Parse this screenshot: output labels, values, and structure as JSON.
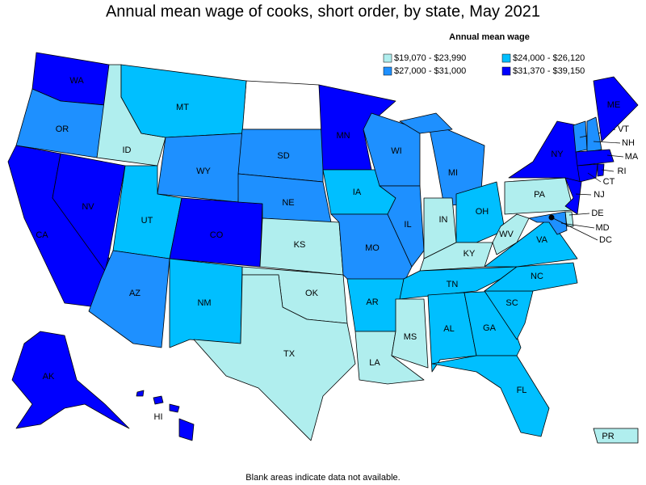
{
  "title": "Annual mean wage of cooks, short order, by state, May 2021",
  "legend": {
    "title": "Annual mean wage",
    "items": [
      {
        "label": "$19,070 - $23,990",
        "color": "#b0eeee"
      },
      {
        "label": "$27,000 - $31,000",
        "color": "#1e90ff"
      },
      {
        "label": "$24,000 - $26,120",
        "color": "#00bfff"
      },
      {
        "label": "$31,370 - $39,150",
        "color": "#0000ff"
      }
    ]
  },
  "states": [
    {
      "abbr": "WA",
      "color": "#0000ff"
    },
    {
      "abbr": "OR",
      "color": "#1e90ff"
    },
    {
      "abbr": "CA",
      "color": "#0000ff"
    },
    {
      "abbr": "NV",
      "color": "#0000ff"
    },
    {
      "abbr": "ID",
      "color": "#b0eeee"
    },
    {
      "abbr": "MT",
      "color": "#00bfff"
    },
    {
      "abbr": "WY",
      "color": "#1e90ff"
    },
    {
      "abbr": "UT",
      "color": "#00bfff"
    },
    {
      "abbr": "CO",
      "color": "#0000ff"
    },
    {
      "abbr": "AZ",
      "color": "#1e90ff"
    },
    {
      "abbr": "NM",
      "color": "#00bfff"
    },
    {
      "abbr": "SD",
      "color": "#1e90ff"
    },
    {
      "abbr": "NE",
      "color": "#1e90ff"
    },
    {
      "abbr": "KS",
      "color": "#b0eeee"
    },
    {
      "abbr": "OK",
      "color": "#b0eeee"
    },
    {
      "abbr": "TX",
      "color": "#b0eeee"
    },
    {
      "abbr": "MN",
      "color": "#0000ff"
    },
    {
      "abbr": "IA",
      "color": "#00bfff"
    },
    {
      "abbr": "MO",
      "color": "#1e90ff"
    },
    {
      "abbr": "AR",
      "color": "#00bfff"
    },
    {
      "abbr": "LA",
      "color": "#b0eeee"
    },
    {
      "abbr": "WI",
      "color": "#1e90ff"
    },
    {
      "abbr": "IL",
      "color": "#1e90ff"
    },
    {
      "abbr": "MI",
      "color": "#1e90ff"
    },
    {
      "abbr": "IN",
      "color": "#b0eeee"
    },
    {
      "abbr": "OH",
      "color": "#00bfff"
    },
    {
      "abbr": "KY",
      "color": "#b0eeee"
    },
    {
      "abbr": "TN",
      "color": "#00bfff"
    },
    {
      "abbr": "MS",
      "color": "#b0eeee"
    },
    {
      "abbr": "AL",
      "color": "#00bfff"
    },
    {
      "abbr": "GA",
      "color": "#00bfff"
    },
    {
      "abbr": "FL",
      "color": "#00bfff"
    },
    {
      "abbr": "SC",
      "color": "#00bfff"
    },
    {
      "abbr": "NC",
      "color": "#00bfff"
    },
    {
      "abbr": "VA",
      "color": "#00bfff"
    },
    {
      "abbr": "WV",
      "color": "#b0eeee"
    },
    {
      "abbr": "PA",
      "color": "#b0eeee"
    },
    {
      "abbr": "NY",
      "color": "#0000ff"
    },
    {
      "abbr": "VT",
      "color": "#1e90ff"
    },
    {
      "abbr": "NH",
      "color": "#1e90ff"
    },
    {
      "abbr": "ME",
      "color": "#0000ff"
    },
    {
      "abbr": "MA",
      "color": "#0000ff"
    },
    {
      "abbr": "RI",
      "color": "#0000ff"
    },
    {
      "abbr": "CT",
      "color": "#0000ff"
    },
    {
      "abbr": "NJ",
      "color": "#0000ff"
    },
    {
      "abbr": "DE",
      "color": "#b0eeee"
    },
    {
      "abbr": "MD",
      "color": "#1e90ff"
    },
    {
      "abbr": "DC",
      "color": "#0000ff"
    },
    {
      "abbr": "AK",
      "color": "#0000ff"
    },
    {
      "abbr": "HI",
      "color": "#0000ff"
    },
    {
      "abbr": "PR",
      "color": "#b0eeee"
    }
  ],
  "footnote": "Blank areas indicate data not available."
}
